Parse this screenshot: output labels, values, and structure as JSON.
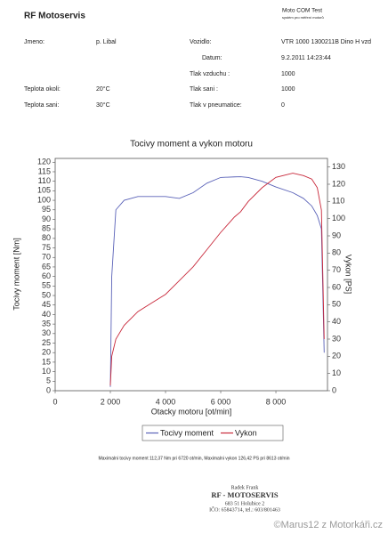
{
  "header": {
    "company": "RF Motoservis",
    "program": "Moto COM Test",
    "program_subtitle": "systém pro měření motorů"
  },
  "fields": {
    "name": {
      "label": "Jmeno:",
      "value": "p. Libal"
    },
    "ambient_temp": {
      "label": "Teplota okoli:",
      "value": "20°C"
    },
    "intake_temp": {
      "label": "Teplota sani:",
      "value": "30°C"
    },
    "vehicle": {
      "label": "Vozidlo:",
      "value": "VTR 1000 1300211B Dino H vzd"
    },
    "date": {
      "label": "Datum:",
      "value": "9.2.2011 14:23:44"
    },
    "air_pressure": {
      "label": "Tlak vzduchu :",
      "value": "1000"
    },
    "intake_pressure": {
      "label": "Tlak sani :",
      "value": "1000"
    },
    "tyre_pressure": {
      "label": "Tlak v pneumatice:",
      "value": "0"
    }
  },
  "chart_data": {
    "type": "line",
    "title": "Tocivy moment a vykon motoru",
    "x_label": "Otacky motoru [ot/min]",
    "y_label": "Tocivy moment [Nm]",
    "y2_label": "Vykon [PS]",
    "x": [
      2000,
      2050,
      2200,
      2500,
      3000,
      3500,
      4000,
      4500,
      5000,
      5500,
      6000,
      6500,
      6720,
      7000,
      7500,
      8000,
      8613,
      9000,
      9300,
      9500,
      9650,
      9750
    ],
    "series": [
      {
        "name": "Tocivy moment",
        "color": "#5a62b8",
        "values": [
          2,
          60,
          95,
          100,
          102,
          102,
          102,
          101,
          104,
          109,
          112,
          112.3,
          112.37,
          112,
          110,
          107,
          104,
          101,
          97,
          92,
          85,
          20
        ]
      },
      {
        "name": "Vykon",
        "color": "#c8283a",
        "axis": "y2",
        "values": [
          3,
          20,
          30,
          38,
          46,
          51,
          56,
          64,
          72,
          82,
          92,
          101,
          104,
          110,
          118,
          124,
          126.42,
          125,
          123,
          118,
          105,
          30
        ]
      }
    ],
    "xlim": [
      0,
      9870
    ],
    "xticks": [
      0,
      {
        "value": 2000,
        "label": "2 000"
      },
      {
        "value": 4000,
        "label": "4 000"
      },
      {
        "value": 6000,
        "label": "6 000"
      },
      {
        "value": 8000,
        "label": "8 000"
      }
    ],
    "ylim": [
      0,
      122
    ],
    "yticks": [
      0,
      5,
      10,
      15,
      20,
      25,
      30,
      35,
      40,
      45,
      50,
      55,
      60,
      65,
      70,
      75,
      80,
      85,
      90,
      95,
      100,
      105,
      110,
      115,
      120
    ],
    "y2lim": [
      0,
      135
    ],
    "y2ticks": [
      0,
      10,
      20,
      30,
      40,
      50,
      60,
      70,
      80,
      90,
      100,
      110,
      120,
      130
    ],
    "grid": false
  },
  "summary": "Maximalni tocivy moment 112,37 Nm pri 6720 ot/min,   Maximalni vykon 126,42 PS pri 8613 ot/min",
  "stamp": [
    "Radek Frank",
    "RF - MOTOSERVIS",
    "683 51 Holubice 2",
    "IČO: 65843714, tel.: 603/801463"
  ],
  "watermark": "©Marus12 z Motorkáři.cz"
}
